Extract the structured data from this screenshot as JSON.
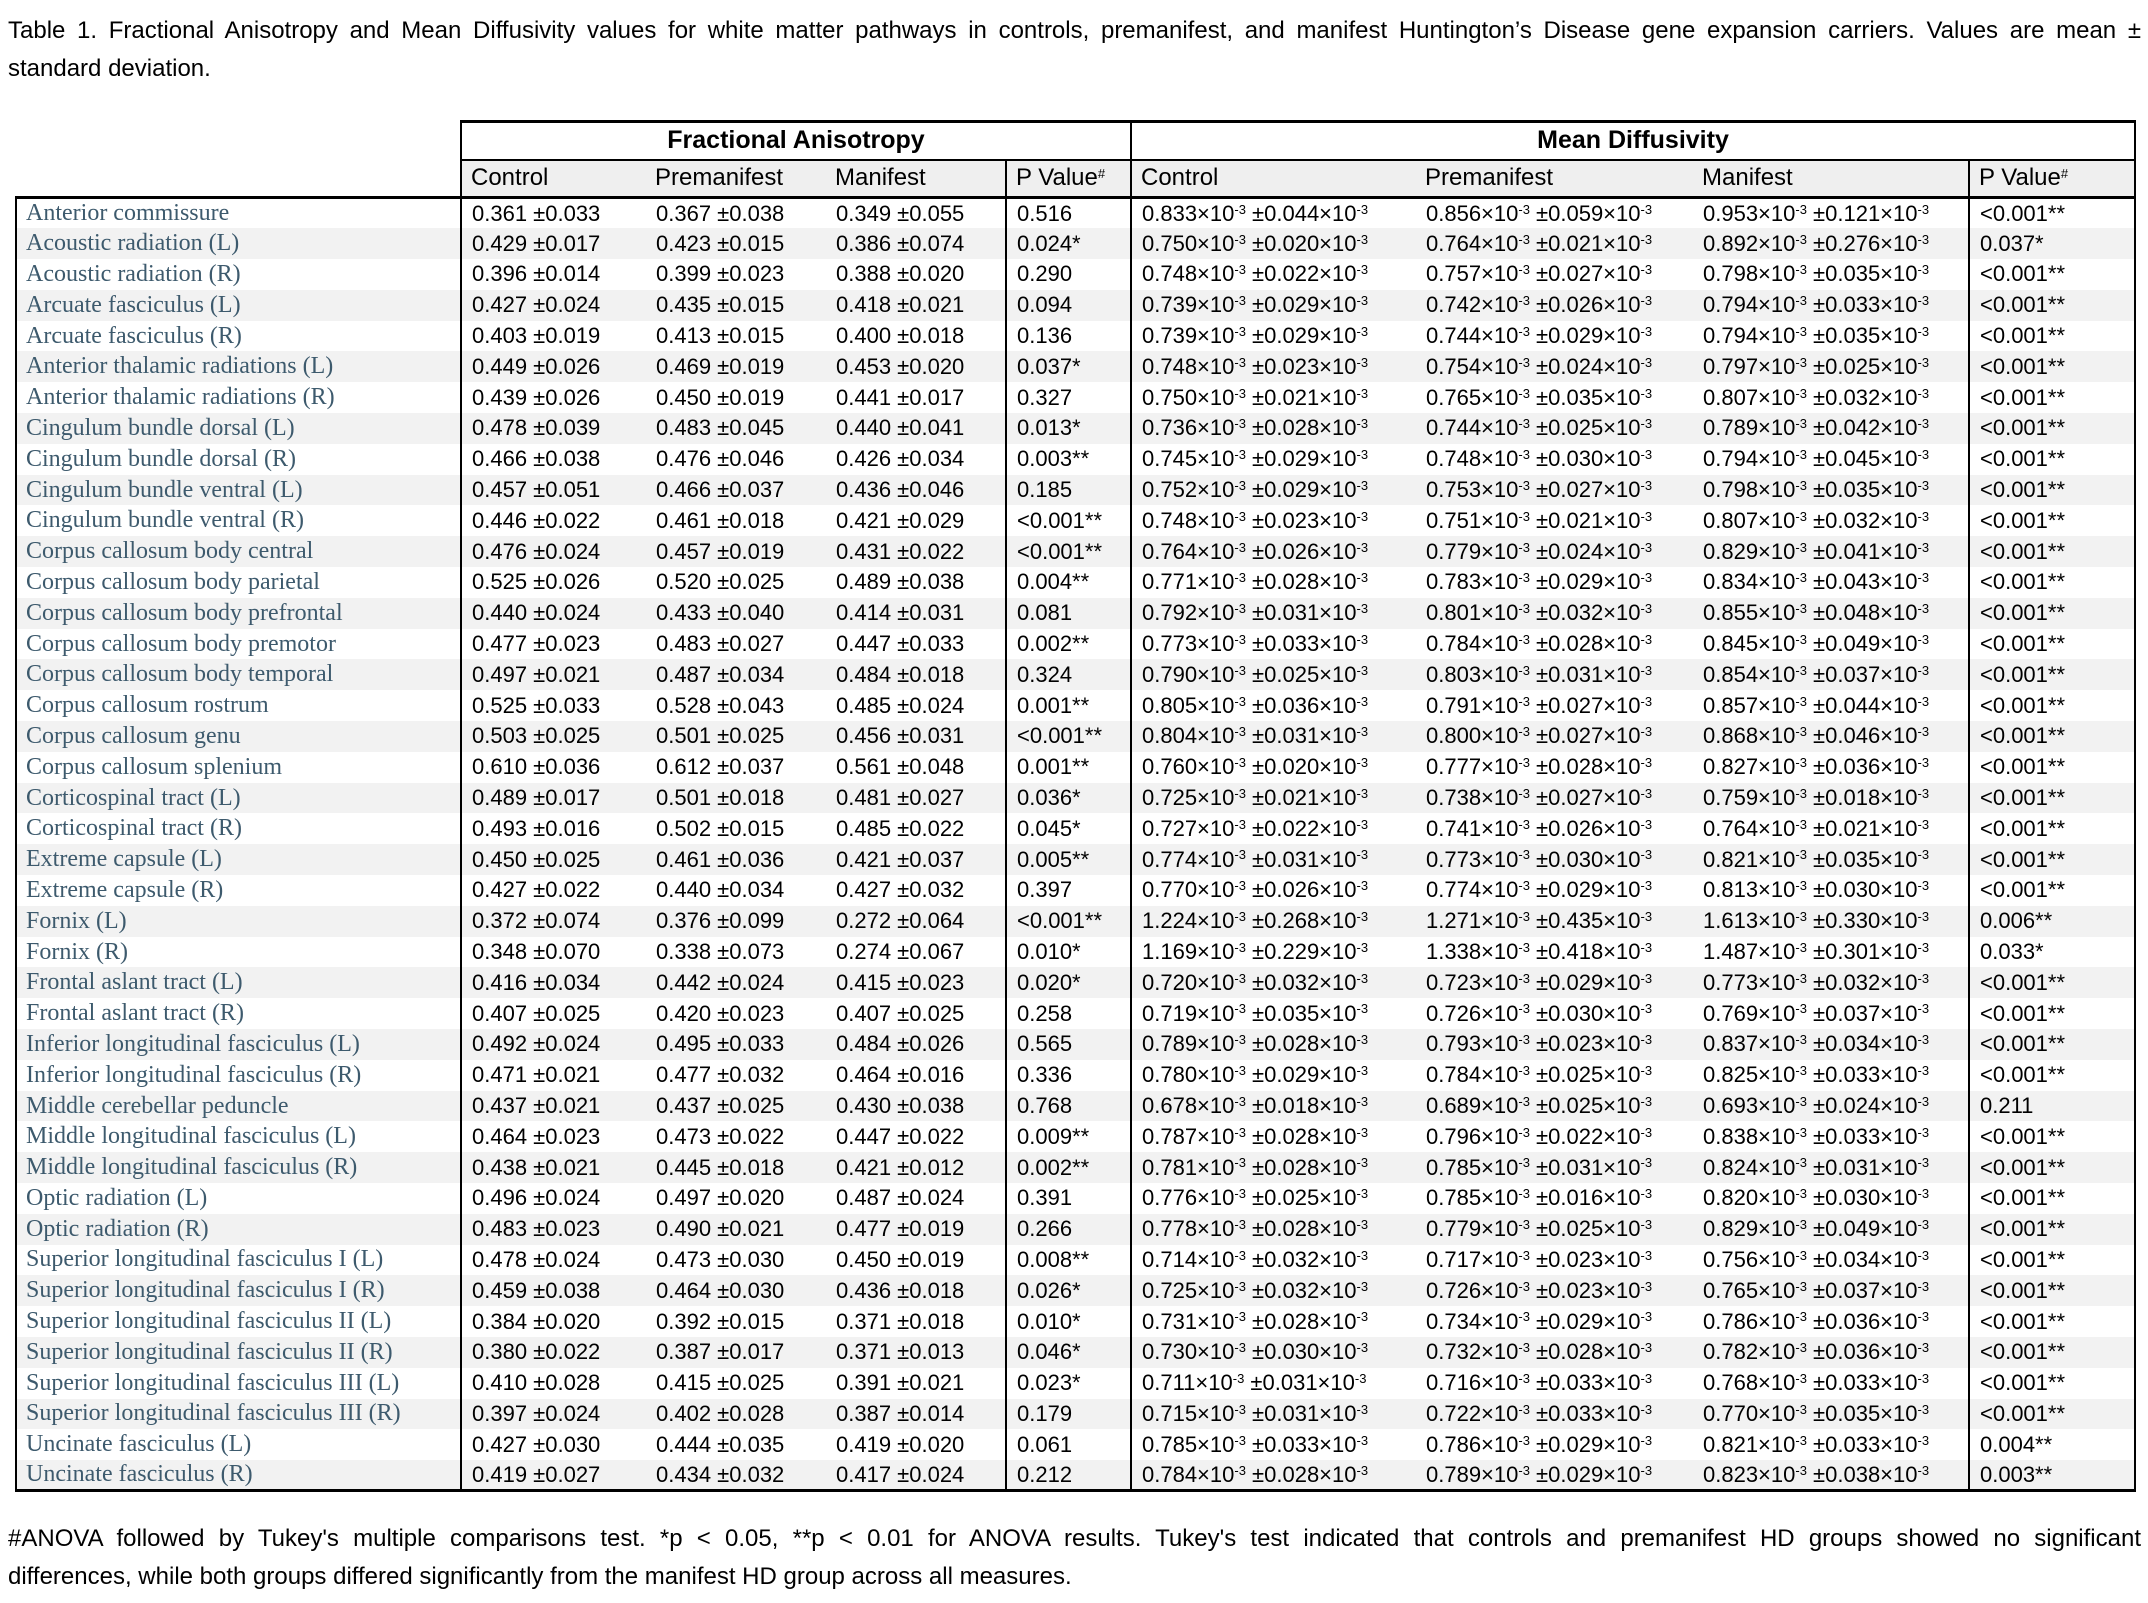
{
  "title": {
    "line1": "Table 1. Fractional Anisotropy and Mean Diffusivity values for white matter pathways in controls, premanifest, and manifest Huntington’s Disease gene expansion carriers. Values are mean ±",
    "line2": "standard deviation."
  },
  "table": {
    "group_headers": [
      "Fractional Anisotropy",
      "Mean Diffusivity"
    ],
    "column_headers": [
      "Control",
      "Premanifest",
      "Manifest"
    ],
    "p_value_label": "P Value",
    "p_sup": "#",
    "plus_minus": " ±",
    "md_exponent": {
      "base": "×10",
      "sup": "-3"
    },
    "rows": [
      {
        "pathway": "Anterior commissure",
        "fa": [
          "0.361",
          "0.033",
          "0.367",
          "0.038",
          "0.349",
          "0.055",
          "0.516"
        ],
        "md": [
          "0.833",
          "0.044",
          "0.856",
          "0.059",
          "0.953",
          "0.121",
          "<0.001**"
        ]
      },
      {
        "pathway": "Acoustic radiation (L)",
        "fa": [
          "0.429",
          "0.017",
          "0.423",
          "0.015",
          "0.386",
          "0.074",
          "0.024*"
        ],
        "md": [
          "0.750",
          "0.020",
          "0.764",
          "0.021",
          "0.892",
          "0.276",
          "0.037*"
        ]
      },
      {
        "pathway": "Acoustic radiation (R)",
        "fa": [
          "0.396",
          "0.014",
          "0.399",
          "0.023",
          "0.388",
          "0.020",
          "0.290"
        ],
        "md": [
          "0.748",
          "0.022",
          "0.757",
          "0.027",
          "0.798",
          "0.035",
          "<0.001**"
        ]
      },
      {
        "pathway": "Arcuate fasciculus (L)",
        "fa": [
          "0.427",
          "0.024",
          "0.435",
          "0.015",
          "0.418",
          "0.021",
          "0.094"
        ],
        "md": [
          "0.739",
          "0.029",
          "0.742",
          "0.026",
          "0.794",
          "0.033",
          "<0.001**"
        ]
      },
      {
        "pathway": "Arcuate fasciculus (R)",
        "fa": [
          "0.403",
          "0.019",
          "0.413",
          "0.015",
          "0.400",
          "0.018",
          "0.136"
        ],
        "md": [
          "0.739",
          "0.029",
          "0.744",
          "0.029",
          "0.794",
          "0.035",
          "<0.001**"
        ]
      },
      {
        "pathway": "Anterior thalamic radiations (L)",
        "fa": [
          "0.449",
          "0.026",
          "0.469",
          "0.019",
          "0.453",
          "0.020",
          "0.037*"
        ],
        "md": [
          "0.748",
          "0.023",
          "0.754",
          "0.024",
          "0.797",
          "0.025",
          "<0.001**"
        ]
      },
      {
        "pathway": "Anterior thalamic radiations (R)",
        "fa": [
          "0.439",
          "0.026",
          "0.450",
          "0.019",
          "0.441",
          "0.017",
          "0.327"
        ],
        "md": [
          "0.750",
          "0.021",
          "0.765",
          "0.035",
          "0.807",
          "0.032",
          "<0.001**"
        ]
      },
      {
        "pathway": "Cingulum bundle dorsal (L)",
        "fa": [
          "0.478",
          "0.039",
          "0.483",
          "0.045",
          "0.440",
          "0.041",
          "0.013*"
        ],
        "md": [
          "0.736",
          "0.028",
          "0.744",
          "0.025",
          "0.789",
          "0.042",
          "<0.001**"
        ]
      },
      {
        "pathway": "Cingulum bundle dorsal (R)",
        "fa": [
          "0.466",
          "0.038",
          "0.476",
          "0.046",
          "0.426",
          "0.034",
          "0.003**"
        ],
        "md": [
          "0.745",
          "0.029",
          "0.748",
          "0.030",
          "0.794",
          "0.045",
          "<0.001**"
        ]
      },
      {
        "pathway": "Cingulum bundle ventral (L)",
        "fa": [
          "0.457",
          "0.051",
          "0.466",
          "0.037",
          "0.436",
          "0.046",
          "0.185"
        ],
        "md": [
          "0.752",
          "0.029",
          "0.753",
          "0.027",
          "0.798",
          "0.035",
          "<0.001**"
        ]
      },
      {
        "pathway": "Cingulum bundle ventral (R)",
        "fa": [
          "0.446",
          "0.022",
          "0.461",
          "0.018",
          "0.421",
          "0.029",
          "<0.001**"
        ],
        "md": [
          "0.748",
          "0.023",
          "0.751",
          "0.021",
          "0.807",
          "0.032",
          "<0.001**"
        ]
      },
      {
        "pathway": "Corpus callosum body central",
        "fa": [
          "0.476",
          "0.024",
          "0.457",
          "0.019",
          "0.431",
          "0.022",
          "<0.001**"
        ],
        "md": [
          "0.764",
          "0.026",
          "0.779",
          "0.024",
          "0.829",
          "0.041",
          "<0.001**"
        ]
      },
      {
        "pathway": "Corpus callosum body parietal",
        "fa": [
          "0.525",
          "0.026",
          "0.520",
          "0.025",
          "0.489",
          "0.038",
          "0.004**"
        ],
        "md": [
          "0.771",
          "0.028",
          "0.783",
          "0.029",
          "0.834",
          "0.043",
          "<0.001**"
        ]
      },
      {
        "pathway": "Corpus callosum body prefrontal",
        "fa": [
          "0.440",
          "0.024",
          "0.433",
          "0.040",
          "0.414",
          "0.031",
          "0.081"
        ],
        "md": [
          "0.792",
          "0.031",
          "0.801",
          "0.032",
          "0.855",
          "0.048",
          "<0.001**"
        ]
      },
      {
        "pathway": "Corpus callosum body premotor",
        "fa": [
          "0.477",
          "0.023",
          "0.483",
          "0.027",
          "0.447",
          "0.033",
          "0.002**"
        ],
        "md": [
          "0.773",
          "0.033",
          "0.784",
          "0.028",
          "0.845",
          "0.049",
          "<0.001**"
        ]
      },
      {
        "pathway": "Corpus callosum body temporal",
        "fa": [
          "0.497",
          "0.021",
          "0.487",
          "0.034",
          "0.484",
          "0.018",
          "0.324"
        ],
        "md": [
          "0.790",
          "0.025",
          "0.803",
          "0.031",
          "0.854",
          "0.037",
          "<0.001**"
        ]
      },
      {
        "pathway": "Corpus callosum rostrum",
        "fa": [
          "0.525",
          "0.033",
          "0.528",
          "0.043",
          "0.485",
          "0.024",
          "0.001**"
        ],
        "md": [
          "0.805",
          "0.036",
          "0.791",
          "0.027",
          "0.857",
          "0.044",
          "<0.001**"
        ]
      },
      {
        "pathway": "Corpus callosum genu",
        "fa": [
          "0.503",
          "0.025",
          "0.501",
          "0.025",
          "0.456",
          "0.031",
          "<0.001**"
        ],
        "md": [
          "0.804",
          "0.031",
          "0.800",
          "0.027",
          "0.868",
          "0.046",
          "<0.001**"
        ]
      },
      {
        "pathway": "Corpus callosum splenium",
        "fa": [
          "0.610",
          "0.036",
          "0.612",
          "0.037",
          "0.561",
          "0.048",
          "0.001**"
        ],
        "md": [
          "0.760",
          "0.020",
          "0.777",
          "0.028",
          "0.827",
          "0.036",
          "<0.001**"
        ]
      },
      {
        "pathway": "Corticospinal tract (L)",
        "fa": [
          "0.489",
          "0.017",
          "0.501",
          "0.018",
          "0.481",
          "0.027",
          "0.036*"
        ],
        "md": [
          "0.725",
          "0.021",
          "0.738",
          "0.027",
          "0.759",
          "0.018",
          "<0.001**"
        ]
      },
      {
        "pathway": "Corticospinal tract (R)",
        "fa": [
          "0.493",
          "0.016",
          "0.502",
          "0.015",
          "0.485",
          "0.022",
          "0.045*"
        ],
        "md": [
          "0.727",
          "0.022",
          "0.741",
          "0.026",
          "0.764",
          "0.021",
          "<0.001**"
        ]
      },
      {
        "pathway": "Extreme capsule (L)",
        "fa": [
          "0.450",
          "0.025",
          "0.461",
          "0.036",
          "0.421",
          "0.037",
          "0.005**"
        ],
        "md": [
          "0.774",
          "0.031",
          "0.773",
          "0.030",
          "0.821",
          "0.035",
          "<0.001**"
        ]
      },
      {
        "pathway": "Extreme capsule (R)",
        "fa": [
          "0.427",
          "0.022",
          "0.440",
          "0.034",
          "0.427",
          "0.032",
          "0.397"
        ],
        "md": [
          "0.770",
          "0.026",
          "0.774",
          "0.029",
          "0.813",
          "0.030",
          "<0.001**"
        ]
      },
      {
        "pathway": "Fornix (L)",
        "fa": [
          "0.372",
          "0.074",
          "0.376",
          "0.099",
          "0.272",
          "0.064",
          "<0.001**"
        ],
        "md": [
          "1.224",
          "0.268",
          "1.271",
          "0.435",
          "1.613",
          "0.330",
          "0.006**"
        ]
      },
      {
        "pathway": "Fornix (R)",
        "fa": [
          "0.348",
          "0.070",
          "0.338",
          "0.073",
          "0.274",
          "0.067",
          "0.010*"
        ],
        "md": [
          "1.169",
          "0.229",
          "1.338",
          "0.418",
          "1.487",
          "0.301",
          "0.033*"
        ]
      },
      {
        "pathway": "Frontal aslant tract (L)",
        "fa": [
          "0.416",
          "0.034",
          "0.442",
          "0.024",
          "0.415",
          "0.023",
          "0.020*"
        ],
        "md": [
          "0.720",
          "0.032",
          "0.723",
          "0.029",
          "0.773",
          "0.032",
          "<0.001**"
        ]
      },
      {
        "pathway": "Frontal aslant tract (R)",
        "fa": [
          "0.407",
          "0.025",
          "0.420",
          "0.023",
          "0.407",
          "0.025",
          "0.258"
        ],
        "md": [
          "0.719",
          "0.035",
          "0.726",
          "0.030",
          "0.769",
          "0.037",
          "<0.001**"
        ]
      },
      {
        "pathway": "Inferior longitudinal fasciculus (L)",
        "fa": [
          "0.492",
          "0.024",
          "0.495",
          "0.033",
          "0.484",
          "0.026",
          "0.565"
        ],
        "md": [
          "0.789",
          "0.028",
          "0.793",
          "0.023",
          "0.837",
          "0.034",
          "<0.001**"
        ]
      },
      {
        "pathway": "Inferior longitudinal fasciculus (R)",
        "fa": [
          "0.471",
          "0.021",
          "0.477",
          "0.032",
          "0.464",
          "0.016",
          "0.336"
        ],
        "md": [
          "0.780",
          "0.029",
          "0.784",
          "0.025",
          "0.825",
          "0.033",
          "<0.001**"
        ]
      },
      {
        "pathway": "Middle cerebellar peduncle",
        "fa": [
          "0.437",
          "0.021",
          "0.437",
          "0.025",
          "0.430",
          "0.038",
          "0.768"
        ],
        "md": [
          "0.678",
          "0.018",
          "0.689",
          "0.025",
          "0.693",
          "0.024",
          "0.211"
        ]
      },
      {
        "pathway": "Middle longitudinal fasciculus (L)",
        "fa": [
          "0.464",
          "0.023",
          "0.473",
          "0.022",
          "0.447",
          "0.022",
          "0.009**"
        ],
        "md": [
          "0.787",
          "0.028",
          "0.796",
          "0.022",
          "0.838",
          "0.033",
          "<0.001**"
        ]
      },
      {
        "pathway": "Middle longitudinal fasciculus (R)",
        "fa": [
          "0.438",
          "0.021",
          "0.445",
          "0.018",
          "0.421",
          "0.012",
          "0.002**"
        ],
        "md": [
          "0.781",
          "0.028",
          "0.785",
          "0.031",
          "0.824",
          "0.031",
          "<0.001**"
        ]
      },
      {
        "pathway": "Optic radiation (L)",
        "fa": [
          "0.496",
          "0.024",
          "0.497",
          "0.020",
          "0.487",
          "0.024",
          "0.391"
        ],
        "md": [
          "0.776",
          "0.025",
          "0.785",
          "0.016",
          "0.820",
          "0.030",
          "<0.001**"
        ]
      },
      {
        "pathway": "Optic radiation (R)",
        "fa": [
          "0.483",
          "0.023",
          "0.490",
          "0.021",
          "0.477",
          "0.019",
          "0.266"
        ],
        "md": [
          "0.778",
          "0.028",
          "0.779",
          "0.025",
          "0.829",
          "0.049",
          "<0.001**"
        ]
      },
      {
        "pathway": "Superior longitudinal fasciculus I (L)",
        "fa": [
          "0.478",
          "0.024",
          "0.473",
          "0.030",
          "0.450",
          "0.019",
          "0.008**"
        ],
        "md": [
          "0.714",
          "0.032",
          "0.717",
          "0.023",
          "0.756",
          "0.034",
          "<0.001**"
        ]
      },
      {
        "pathway": "Superior longitudinal fasciculus I (R)",
        "fa": [
          "0.459",
          "0.038",
          "0.464",
          "0.030",
          "0.436",
          "0.018",
          "0.026*"
        ],
        "md": [
          "0.725",
          "0.032",
          "0.726",
          "0.023",
          "0.765",
          "0.037",
          "<0.001**"
        ]
      },
      {
        "pathway": "Superior longitudinal fasciculus II (L)",
        "fa": [
          "0.384",
          "0.020",
          "0.392",
          "0.015",
          "0.371",
          "0.018",
          "0.010*"
        ],
        "md": [
          "0.731",
          "0.028",
          "0.734",
          "0.029",
          "0.786",
          "0.036",
          "<0.001**"
        ]
      },
      {
        "pathway": "Superior longitudinal fasciculus II (R)",
        "fa": [
          "0.380",
          "0.022",
          "0.387",
          "0.017",
          "0.371",
          "0.013",
          "0.046*"
        ],
        "md": [
          "0.730",
          "0.030",
          "0.732",
          "0.028",
          "0.782",
          "0.036",
          "<0.001**"
        ]
      },
      {
        "pathway": "Superior longitudinal fasciculus III (L)",
        "fa": [
          "0.410",
          "0.028",
          "0.415",
          "0.025",
          "0.391",
          "0.021",
          "0.023*"
        ],
        "md": [
          "0.711",
          "0.031",
          "0.716",
          "0.033",
          "0.768",
          "0.033",
          "<0.001**"
        ]
      },
      {
        "pathway": "Superior longitudinal fasciculus III (R)",
        "fa": [
          "0.397",
          "0.024",
          "0.402",
          "0.028",
          "0.387",
          "0.014",
          "0.179"
        ],
        "md": [
          "0.715",
          "0.031",
          "0.722",
          "0.033",
          "0.770",
          "0.035",
          "<0.001**"
        ]
      },
      {
        "pathway": "Uncinate fasciculus (L)",
        "fa": [
          "0.427",
          "0.030",
          "0.444",
          "0.035",
          "0.419",
          "0.020",
          "0.061"
        ],
        "md": [
          "0.785",
          "0.033",
          "0.786",
          "0.029",
          "0.821",
          "0.033",
          "0.004**"
        ]
      },
      {
        "pathway": "Uncinate fasciculus (R)",
        "fa": [
          "0.419",
          "0.027",
          "0.434",
          "0.032",
          "0.417",
          "0.024",
          "0.212"
        ],
        "md": [
          "0.784",
          "0.028",
          "0.789",
          "0.029",
          "0.823",
          "0.038",
          "0.003**"
        ]
      }
    ]
  },
  "footnote": {
    "line1": "#ANOVA followed by Tukey's multiple comparisons test. *p < 0.05, **p < 0.01 for ANOVA results. Tukey's test indicated that controls and premanifest HD groups showed no significant",
    "line2": "differences, while both groups differed significantly from the manifest HD group across all measures."
  }
}
